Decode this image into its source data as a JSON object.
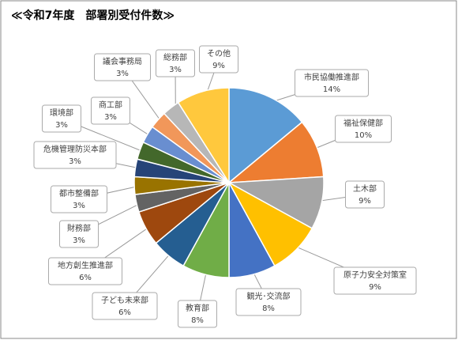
{
  "chart_data": {
    "type": "pie",
    "title": "≪令和7年度　部署別受付件数≫",
    "categories": [
      "市民協働推進部",
      "福祉保健部",
      "土木部",
      "原子力安全対策室",
      "観光･交流部",
      "教育部",
      "子ども未来部",
      "地方創生推進部",
      "財務部",
      "都市整備部",
      "危機管理防災本部",
      "環境部",
      "商工部",
      "議会事務局",
      "総務部",
      "その他"
    ],
    "values": [
      14,
      10,
      9,
      9,
      8,
      8,
      6,
      6,
      3,
      3,
      3,
      3,
      3,
      3,
      3,
      9
    ],
    "value_labels": [
      "14%",
      "10%",
      "9%",
      "9%",
      "8%",
      "8%",
      "6%",
      "6%",
      "3%",
      "3%",
      "3%",
      "3%",
      "3%",
      "3%",
      "3%",
      "9%"
    ],
    "colors": [
      "#5b9bd5",
      "#ed7d31",
      "#a5a5a5",
      "#ffc000",
      "#4472c4",
      "#70ad47",
      "#255e91",
      "#9e480e",
      "#636363",
      "#997300",
      "#264478",
      "#43682b",
      "#698ed0",
      "#f1975a",
      "#b7b7b7",
      "#ffc83d"
    ]
  }
}
